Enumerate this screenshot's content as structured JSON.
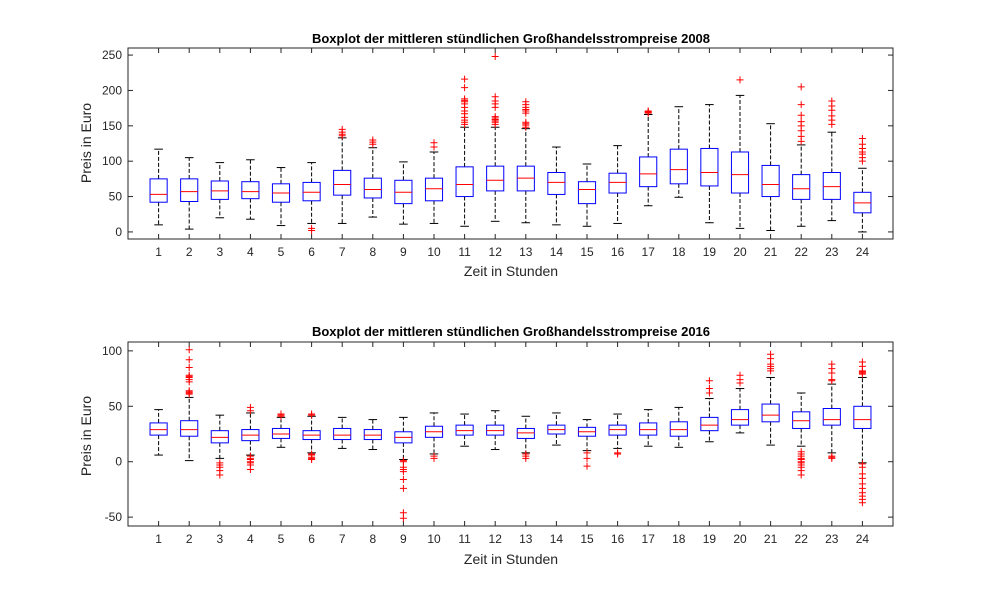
{
  "chart_data": [
    {
      "type": "boxplot",
      "title": "Boxplot der mittleren stündlichen Großhandelsstrompreise 2008",
      "xlabel": "Zeit in Stunden",
      "ylabel": "Preis in Euro",
      "categories": [
        "1",
        "2",
        "3",
        "4",
        "5",
        "6",
        "7",
        "8",
        "9",
        "10",
        "11",
        "12",
        "13",
        "14",
        "15",
        "16",
        "17",
        "18",
        "19",
        "20",
        "21",
        "22",
        "23",
        "24"
      ],
      "ylim": [
        -10,
        260
      ],
      "yticks": [
        0,
        50,
        100,
        150,
        200,
        250
      ],
      "box_color": "#0000ff",
      "median_color": "#ff0000",
      "outlier_color": "#ff0000",
      "whisker_color": "#000000",
      "boxes": [
        {
          "q1": 42,
          "median": 53,
          "q3": 75,
          "whislo": 10,
          "whishi": 117,
          "fliers": []
        },
        {
          "q1": 43,
          "median": 57,
          "q3": 75,
          "whislo": 4,
          "whishi": 105,
          "fliers": []
        },
        {
          "q1": 46,
          "median": 58,
          "q3": 72,
          "whislo": 20,
          "whishi": 98,
          "fliers": []
        },
        {
          "q1": 47,
          "median": 57,
          "q3": 71,
          "whislo": 18,
          "whishi": 102,
          "fliers": []
        },
        {
          "q1": 42,
          "median": 55,
          "q3": 68,
          "whislo": 9,
          "whishi": 91,
          "fliers": []
        },
        {
          "q1": 44,
          "median": 56,
          "q3": 70,
          "whislo": 12,
          "whishi": 98,
          "fliers": [
            2,
            5
          ]
        },
        {
          "q1": 52,
          "median": 67,
          "q3": 87,
          "whislo": 12,
          "whishi": 133,
          "fliers": [
            136,
            138,
            141,
            145
          ]
        },
        {
          "q1": 48,
          "median": 60,
          "q3": 76,
          "whislo": 21,
          "whishi": 119,
          "fliers": [
            124,
            127,
            130
          ]
        },
        {
          "q1": 40,
          "median": 56,
          "q3": 73,
          "whislo": 11,
          "whishi": 99,
          "fliers": []
        },
        {
          "q1": 44,
          "median": 61,
          "q3": 76,
          "whislo": 12,
          "whishi": 113,
          "fliers": [
            120,
            126
          ]
        },
        {
          "q1": 50,
          "median": 67,
          "q3": 92,
          "whislo": 8,
          "whishi": 148,
          "fliers": [
            152,
            155,
            158,
            162,
            167,
            171,
            176,
            181,
            184,
            186,
            188,
            204,
            216
          ]
        },
        {
          "q1": 58,
          "median": 73,
          "q3": 93,
          "whislo": 15,
          "whishi": 148,
          "fliers": [
            152,
            155,
            157,
            159,
            161,
            163,
            176,
            181,
            185,
            191,
            248
          ]
        },
        {
          "q1": 58,
          "median": 76,
          "q3": 93,
          "whislo": 13,
          "whishi": 146,
          "fliers": [
            148,
            151,
            153,
            155,
            168,
            171,
            173,
            176,
            180,
            184
          ]
        },
        {
          "q1": 53,
          "median": 70,
          "q3": 84,
          "whislo": 10,
          "whishi": 120,
          "fliers": []
        },
        {
          "q1": 40,
          "median": 60,
          "q3": 71,
          "whislo": 8,
          "whishi": 96,
          "fliers": []
        },
        {
          "q1": 55,
          "median": 70,
          "q3": 83,
          "whislo": 12,
          "whishi": 122,
          "fliers": []
        },
        {
          "q1": 64,
          "median": 82,
          "q3": 106,
          "whislo": 37,
          "whishi": 166,
          "fliers": [
            168,
            169,
            170,
            171
          ]
        },
        {
          "q1": 68,
          "median": 88,
          "q3": 117,
          "whislo": 49,
          "whishi": 177,
          "fliers": []
        },
        {
          "q1": 65,
          "median": 84,
          "q3": 118,
          "whislo": 13,
          "whishi": 180,
          "fliers": []
        },
        {
          "q1": 55,
          "median": 81,
          "q3": 113,
          "whislo": 5,
          "whishi": 193,
          "fliers": [
            215
          ]
        },
        {
          "q1": 50,
          "median": 67,
          "q3": 94,
          "whislo": 2,
          "whishi": 153,
          "fliers": []
        },
        {
          "q1": 46,
          "median": 61,
          "q3": 81,
          "whislo": 8,
          "whishi": 123,
          "fliers": [
            128,
            135,
            143,
            150,
            156,
            165,
            180,
            205
          ]
        },
        {
          "q1": 46,
          "median": 64,
          "q3": 84,
          "whislo": 16,
          "whishi": 141,
          "fliers": [
            152,
            158,
            164,
            172,
            178,
            185
          ]
        },
        {
          "q1": 27,
          "median": 41,
          "q3": 56,
          "whislo": 0,
          "whishi": 90,
          "fliers": [
            100,
            105,
            110,
            113,
            118,
            124,
            132
          ]
        }
      ]
    },
    {
      "type": "boxplot",
      "title": "Boxplot der mittleren stündlichen Großhandelsstrompreise 2016",
      "xlabel": "Zeit in Stunden",
      "ylabel": "Preis in Euro",
      "categories": [
        "1",
        "2",
        "3",
        "4",
        "5",
        "6",
        "7",
        "8",
        "9",
        "10",
        "11",
        "12",
        "13",
        "14",
        "15",
        "16",
        "17",
        "18",
        "19",
        "20",
        "21",
        "22",
        "23",
        "24"
      ],
      "ylim": [
        -58,
        108
      ],
      "yticks": [
        -50,
        0,
        50,
        100
      ],
      "box_color": "#0000ff",
      "median_color": "#ff0000",
      "outlier_color": "#ff0000",
      "whisker_color": "#000000",
      "boxes": [
        {
          "q1": 24,
          "median": 29,
          "q3": 35,
          "whislo": 6,
          "whishi": 47,
          "fliers": []
        },
        {
          "q1": 23,
          "median": 29,
          "q3": 37,
          "whislo": 1,
          "whishi": 58,
          "fliers": [
            61,
            62,
            63,
            64,
            72,
            74,
            76,
            77,
            78,
            85,
            92,
            101
          ]
        },
        {
          "q1": 17,
          "median": 22,
          "q3": 28,
          "whislo": 3,
          "whishi": 42,
          "fliers": [
            -1,
            -3,
            -5,
            -8,
            -12
          ]
        },
        {
          "q1": 19,
          "median": 24,
          "q3": 29,
          "whislo": 6,
          "whishi": 44,
          "fliers": [
            -7,
            -3,
            -1,
            0,
            2,
            3,
            5,
            46,
            49
          ]
        },
        {
          "q1": 21,
          "median": 25,
          "q3": 30,
          "whislo": 13,
          "whishi": 40,
          "fliers": [
            41,
            42,
            43
          ]
        },
        {
          "q1": 20,
          "median": 24,
          "q3": 28,
          "whislo": 8,
          "whishi": 41,
          "fliers": [
            2,
            3,
            4,
            6,
            7,
            42,
            43
          ]
        },
        {
          "q1": 20,
          "median": 24,
          "q3": 30,
          "whislo": 12,
          "whishi": 40,
          "fliers": []
        },
        {
          "q1": 20,
          "median": 24,
          "q3": 29,
          "whislo": 11,
          "whishi": 38,
          "fliers": []
        },
        {
          "q1": 17,
          "median": 22,
          "q3": 27,
          "whislo": 2,
          "whishi": 40,
          "fliers": [
            -46,
            -51,
            -24,
            -16,
            -9,
            -7,
            -5,
            0,
            1
          ]
        },
        {
          "q1": 22,
          "median": 27,
          "q3": 32,
          "whislo": 7,
          "whishi": 44,
          "fliers": [
            3,
            5
          ]
        },
        {
          "q1": 24,
          "median": 28,
          "q3": 33,
          "whislo": 14,
          "whishi": 43,
          "fliers": []
        },
        {
          "q1": 24,
          "median": 28,
          "q3": 33,
          "whislo": 11,
          "whishi": 46,
          "fliers": []
        },
        {
          "q1": 21,
          "median": 26,
          "q3": 30,
          "whislo": 8,
          "whishi": 41,
          "fliers": [
            3,
            5,
            7
          ]
        },
        {
          "q1": 25,
          "median": 29,
          "q3": 33,
          "whislo": 15,
          "whishi": 44,
          "fliers": []
        },
        {
          "q1": 23,
          "median": 27,
          "q3": 31,
          "whislo": 10,
          "whishi": 38,
          "fliers": [
            -4,
            3,
            8
          ]
        },
        {
          "q1": 24,
          "median": 29,
          "q3": 33,
          "whislo": 12,
          "whishi": 43,
          "fliers": [
            7,
            8
          ]
        },
        {
          "q1": 24,
          "median": 29,
          "q3": 35,
          "whislo": 14,
          "whishi": 47,
          "fliers": []
        },
        {
          "q1": 23,
          "median": 29,
          "q3": 36,
          "whislo": 13,
          "whishi": 49,
          "fliers": []
        },
        {
          "q1": 28,
          "median": 33,
          "q3": 40,
          "whislo": 18,
          "whishi": 57,
          "fliers": [
            62,
            66,
            73
          ]
        },
        {
          "q1": 33,
          "median": 38,
          "q3": 47,
          "whislo": 26,
          "whishi": 66,
          "fliers": [
            71,
            74,
            78
          ]
        },
        {
          "q1": 36,
          "median": 42,
          "q3": 52,
          "whislo": 15,
          "whishi": 76,
          "fliers": [
            82,
            84,
            86,
            88,
            93,
            97
          ]
        },
        {
          "q1": 30,
          "median": 37,
          "q3": 45,
          "whislo": 14,
          "whishi": 62,
          "fliers": [
            -12,
            -8,
            -5,
            -3,
            -1,
            0,
            2,
            3,
            5,
            7,
            9
          ]
        },
        {
          "q1": 33,
          "median": 38,
          "q3": 48,
          "whislo": 8,
          "whishi": 70,
          "fliers": [
            3,
            4,
            5,
            73,
            74,
            80,
            84,
            88
          ]
        },
        {
          "q1": 30,
          "median": 38,
          "q3": 50,
          "whislo": -1,
          "whishi": 76,
          "fliers": [
            -37,
            -34,
            -31,
            -28,
            -24,
            -20,
            -15,
            -11,
            -5,
            -2,
            79,
            80,
            81,
            82,
            86,
            90
          ]
        }
      ]
    }
  ]
}
